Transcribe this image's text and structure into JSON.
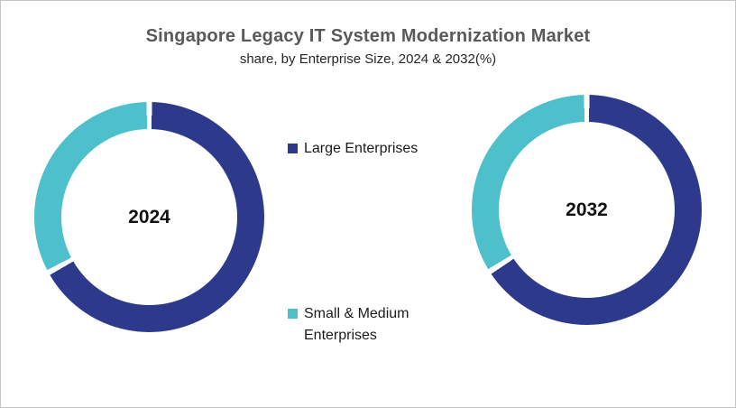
{
  "title": "Singapore Legacy IT System Modernization Market",
  "subtitle": "share, by Enterprise Size, 2024 & 2032(%)",
  "legend": {
    "items": [
      {
        "label": "Large Enterprises",
        "color": "#2d3a8c"
      },
      {
        "label": "Small & Medium Enterprises",
        "color": "#4ec0cb"
      }
    ],
    "position": "center-between-donuts"
  },
  "chart_data": {
    "type": "pie",
    "subtype": "double-donut",
    "title": "Singapore Legacy IT System Modernization Market",
    "subtitle": "share, by Enterprise Size, 2024 & 2032(%)",
    "unit": "%",
    "categories": [
      "Large Enterprises",
      "Small & Medium Enterprises"
    ],
    "colors": [
      "#2d3a8c",
      "#4ec0cb"
    ],
    "segment_gap_color": "#ffffff",
    "donut_hole_ratio": 0.765,
    "start_angle_deg": 0,
    "direction": "clockwise",
    "charts": [
      {
        "center_label": "2024",
        "values": [
          67,
          33
        ]
      },
      {
        "center_label": "2032",
        "values": [
          66,
          34
        ]
      }
    ],
    "legend_entries": [
      "Large Enterprises",
      "Small & Medium Enterprises"
    ],
    "data_labels_shown": false,
    "grid": false
  }
}
